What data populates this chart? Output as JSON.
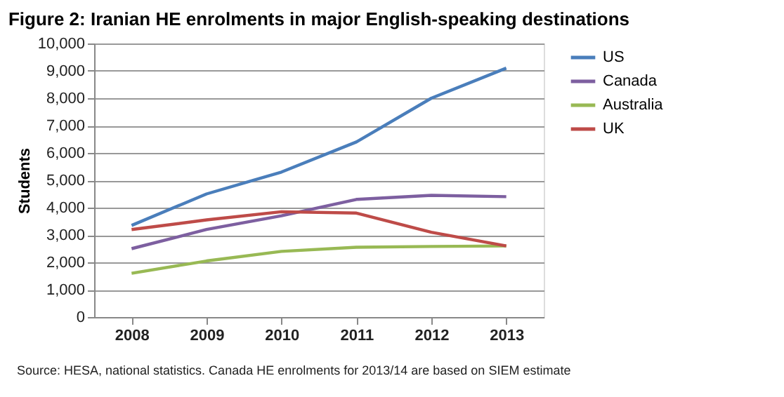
{
  "chart_data": {
    "type": "line",
    "title": "Figure 2: Iranian HE enrolments in major English-speaking destinations",
    "ylabel": "Students",
    "categories": [
      "2008",
      "2009",
      "2010",
      "2011",
      "2012",
      "2013"
    ],
    "series": [
      {
        "name": "US",
        "color": "#4a7ebb",
        "values": [
          3350,
          4500,
          5300,
          6400,
          8000,
          9100
        ]
      },
      {
        "name": "Canada",
        "color": "#7d5fa0",
        "values": [
          2500,
          3200,
          3700,
          4300,
          4450,
          4400
        ]
      },
      {
        "name": "Australia",
        "color": "#98b954",
        "values": [
          1600,
          2050,
          2400,
          2550,
          2580,
          2600
        ]
      },
      {
        "name": "UK",
        "color": "#be4b48",
        "values": [
          3200,
          3550,
          3850,
          3800,
          3100,
          2600
        ]
      }
    ],
    "ylim": [
      0,
      10000
    ],
    "yticks": [
      0,
      {
        "value": 1000,
        "label": "1,000"
      },
      {
        "value": 2000,
        "label": "2,000"
      },
      {
        "value": 3000,
        "label": "3,000"
      },
      {
        "value": 4000,
        "label": "4,000"
      },
      {
        "value": 5000,
        "label": "5,000"
      },
      {
        "value": 6000,
        "label": "6,000"
      },
      {
        "value": 7000,
        "label": "7,000"
      },
      {
        "value": 8000,
        "label": "8,000"
      },
      {
        "value": 9000,
        "label": "9,000"
      },
      {
        "value": 10000,
        "label": "10,000"
      }
    ],
    "grid": "y",
    "legend": "right",
    "marker": "none",
    "line_style": "solid",
    "annotations": [
      "Source: HESA, national statistics. Canada HE enrolments for 2013/14 are based on SIEM estimate"
    ]
  }
}
